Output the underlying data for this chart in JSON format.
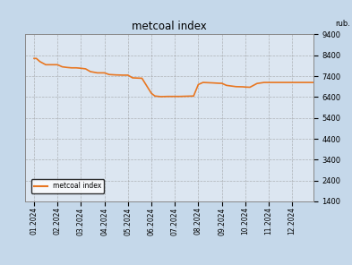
{
  "title": "metcoal index",
  "ylabel_text": "rub.",
  "legend_label": "metcoal index",
  "line_color": "#e87722",
  "plot_bg_color": "#dce6f1",
  "outer_bg_color": "#c5d8ea",
  "grid_color": "#8f8f8f",
  "ylim": [
    1400,
    9400
  ],
  "yticks": [
    1400,
    2400,
    3400,
    4400,
    5400,
    6400,
    7400,
    8400,
    9400
  ],
  "x_labels": [
    "01.2024",
    "02.2024",
    "03.2024",
    "04.2024",
    "05.2024",
    "06.2024",
    "07.2024",
    "08.2024",
    "09.2024",
    "10.2024",
    "11.2024",
    "12.2024"
  ],
  "data_x": [
    0.0,
    0.1,
    0.25,
    0.5,
    1.0,
    1.2,
    1.4,
    1.6,
    1.8,
    2.0,
    2.2,
    2.4,
    2.7,
    3.0,
    3.2,
    3.5,
    3.8,
    4.0,
    4.2,
    4.6,
    5.0,
    5.15,
    5.4,
    5.7,
    6.0,
    6.2,
    6.5,
    6.8,
    7.0,
    7.2,
    7.6,
    7.9,
    8.0,
    8.2,
    8.6,
    8.9,
    9.0,
    9.2,
    9.5,
    9.8,
    10.0,
    10.3,
    10.6,
    11.0,
    11.5,
    11.99
  ],
  "data_y": [
    8250,
    8250,
    8100,
    7950,
    7950,
    7850,
    7820,
    7800,
    7800,
    7780,
    7750,
    7620,
    7560,
    7560,
    7480,
    7460,
    7450,
    7450,
    7320,
    7300,
    6580,
    6450,
    6420,
    6430,
    6430,
    6430,
    6440,
    6450,
    7000,
    7100,
    7080,
    7060,
    7060,
    6960,
    6900,
    6890,
    6880,
    6870,
    7050,
    7100,
    7100,
    7100,
    7100,
    7100,
    7100,
    7100
  ]
}
